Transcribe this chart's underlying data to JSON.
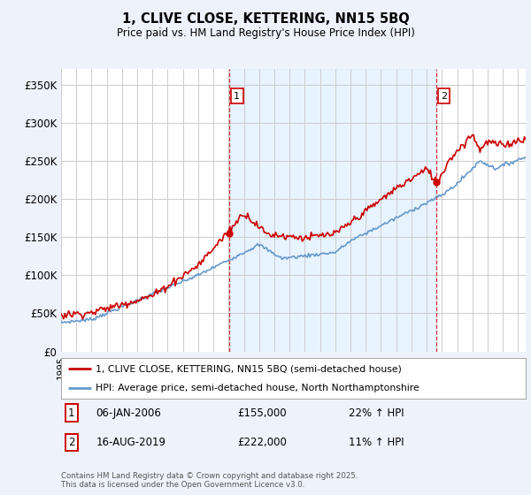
{
  "title": "1, CLIVE CLOSE, KETTERING, NN15 5BQ",
  "subtitle": "Price paid vs. HM Land Registry's House Price Index (HPI)",
  "ylabel_ticks": [
    "£0",
    "£50K",
    "£100K",
    "£150K",
    "£200K",
    "£250K",
    "£300K",
    "£350K"
  ],
  "ytick_values": [
    0,
    50000,
    100000,
    150000,
    200000,
    250000,
    300000,
    350000
  ],
  "ylim": [
    0,
    370000
  ],
  "xlim_start": 1995.0,
  "xlim_end": 2025.5,
  "price_paid_color": "#cc0000",
  "hpi_color": "#6699cc",
  "shade_color": "#ddeeff",
  "marker1_year": 2006.04,
  "marker1_price": 155000,
  "marker1_label": "06-JAN-2006",
  "marker1_pct": "22% ↑ HPI",
  "marker2_year": 2019.62,
  "marker2_price": 222000,
  "marker2_label": "16-AUG-2019",
  "marker2_pct": "11% ↑ HPI",
  "legend_line1": "1, CLIVE CLOSE, KETTERING, NN15 5BQ (semi-detached house)",
  "legend_line2": "HPI: Average price, semi-detached house, North Northamptonshire",
  "footnote": "Contains HM Land Registry data © Crown copyright and database right 2025.\nThis data is licensed under the Open Government Licence v3.0.",
  "bg_color": "#eef2fb",
  "plot_bg_color": "#ffffff",
  "grid_color": "#cccccc"
}
